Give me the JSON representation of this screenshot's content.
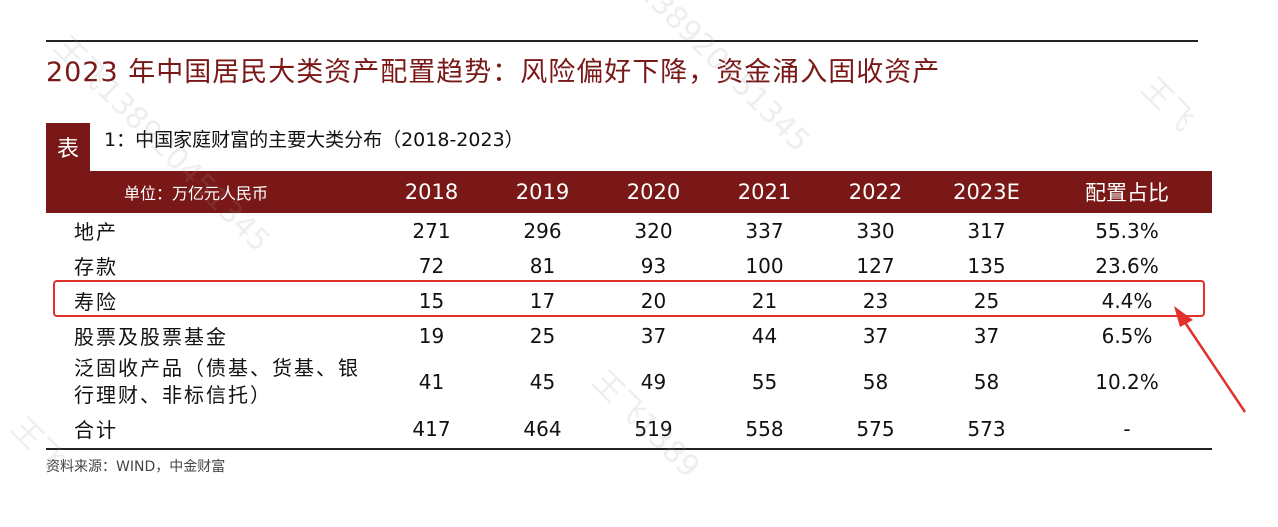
{
  "title": "2023 年中国居民大类资产配置趋势：风险偏好下降，资金涌入固收资产",
  "caption": {
    "label": "表",
    "text": "1：中国家庭财富的主要大类分布（2018-2023）"
  },
  "table": {
    "header": [
      "单位：万亿元人民币",
      "2018",
      "2019",
      "2020",
      "2021",
      "2022",
      "2023E",
      "配置占比"
    ],
    "rows": [
      {
        "label": "地产",
        "values": [
          "271",
          "296",
          "320",
          "337",
          "330",
          "317",
          "55.3%"
        ]
      },
      {
        "label": "存款",
        "values": [
          "72",
          "81",
          "93",
          "100",
          "127",
          "135",
          "23.6%"
        ]
      },
      {
        "label": "寿险",
        "values": [
          "15",
          "17",
          "20",
          "21",
          "23",
          "25",
          "4.4%"
        ]
      },
      {
        "label": "股票及股票基金",
        "values": [
          "19",
          "25",
          "37",
          "44",
          "37",
          "37",
          "6.5%"
        ]
      },
      {
        "label_line1": "泛固收产品（债基、货基、银",
        "label_line2": "行理财、非标信托）",
        "values": [
          "41",
          "45",
          "49",
          "55",
          "58",
          "58",
          "10.2%"
        ]
      },
      {
        "label": "合计",
        "values": [
          "417",
          "464",
          "519",
          "558",
          "575",
          "573",
          "-"
        ]
      }
    ]
  },
  "source": "资料来源：WIND，中金财富",
  "highlight_color": "#e2302b",
  "brand_color": "#7a1818"
}
